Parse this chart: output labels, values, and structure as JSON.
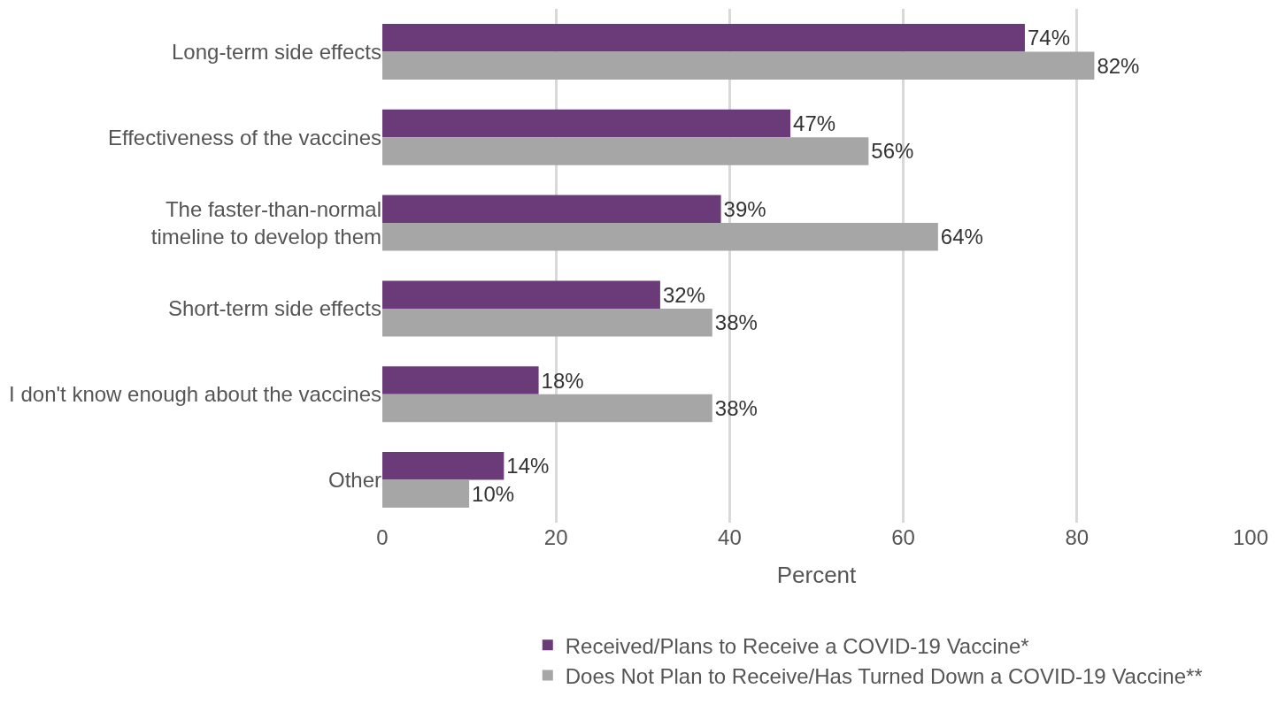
{
  "chart_data": {
    "type": "bar",
    "orientation": "horizontal",
    "xlabel": "Percent",
    "categories": [
      "Long-term side effects",
      "Effectiveness of the vaccines",
      "The faster-than-normal\ntimeline to develop them",
      "Short-term side effects",
      "I don't know enough about the vaccines",
      "Other"
    ],
    "series": [
      {
        "name": "Received/Plans to Receive a COVID-19 Vaccine*",
        "color": "#6b3a78",
        "values": [
          74,
          47,
          39,
          32,
          18,
          14
        ],
        "value_labels": [
          "74%",
          "47%",
          "39%",
          "32%",
          "18%",
          "14%"
        ]
      },
      {
        "name": "Does Not Plan to Receive/Has Turned Down a COVID-19 Vaccine**",
        "color": "#a6a6a6",
        "values": [
          82,
          56,
          64,
          38,
          38,
          10
        ],
        "value_labels": [
          "82%",
          "56%",
          "64%",
          "38%",
          "38%",
          "10%"
        ]
      }
    ],
    "xlim": [
      0,
      100
    ],
    "xticks": [
      0,
      20,
      40,
      60,
      80,
      100
    ],
    "grid": "x",
    "legend": "bottom"
  }
}
